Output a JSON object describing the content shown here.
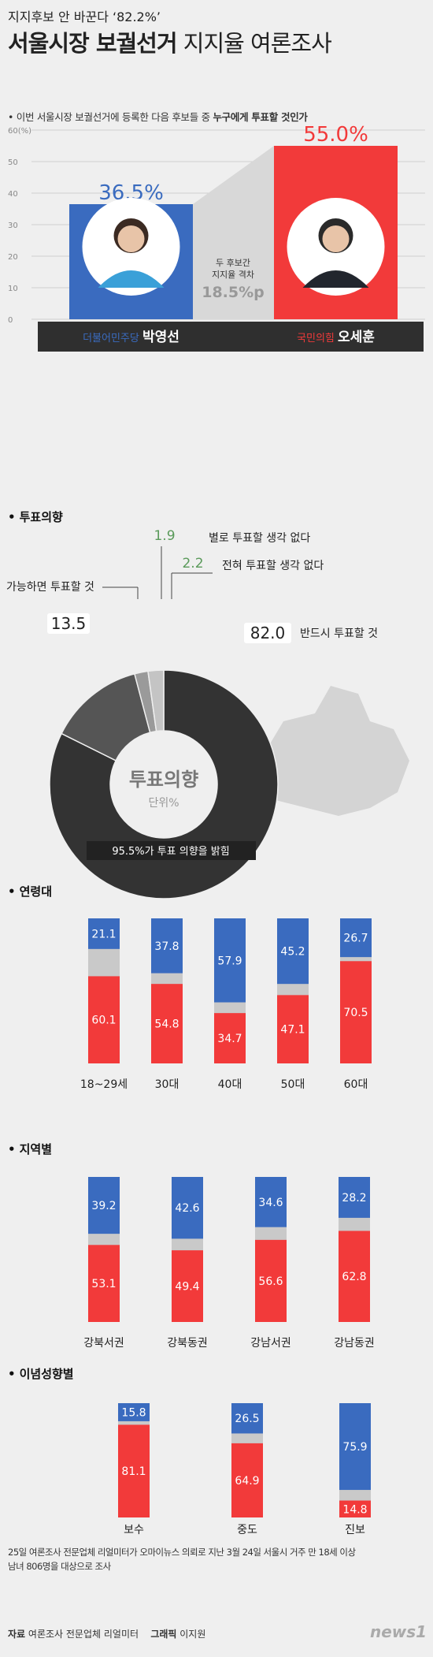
{
  "header": {
    "kicker": "지지후보 안 바꾼다 ‘82.2%’",
    "title_bold": "서울시장 보궐선거",
    "title_regular": "지지율 여론조사",
    "question_prefix": "이번 서울시장 보궐선거에 등록한 다음 후보들 중",
    "question_bold": "누구에게 투표할 것인가"
  },
  "colors": {
    "blue": "#3a6bbf",
    "red": "#f23a3a",
    "gray": "#c9c9c9",
    "dark": "#333333"
  },
  "chart_data": [
    {
      "type": "bar",
      "title": "",
      "categories": [
        "더불어민주당 박영선",
        "국민의힘 오세훈"
      ],
      "series": [
        {
          "values": [
            36.5,
            55.0
          ]
        }
      ],
      "ylim": [
        0,
        60
      ],
      "yticks": [
        "0",
        "10",
        "20",
        "30",
        "40",
        "50",
        "60(%)"
      ],
      "value_labels": [
        "36.5%",
        "55.0%"
      ],
      "candidates": [
        {
          "party": "더불어민주당",
          "name": "박영선",
          "color": "#3a6bbf"
        },
        {
          "party": "국민의힘",
          "name": "오세훈",
          "color": "#f23a3a"
        }
      ],
      "gap_label_1": "두 후보간",
      "gap_label_2": "지지율 격차",
      "gap_value": "18.5%p"
    },
    {
      "type": "pie",
      "section_title": "투표의향",
      "center_title": "투표의향",
      "center_unit": "단위%",
      "slices": [
        {
          "label": "반드시 투표할 것",
          "value": 82.0,
          "display": "82.0"
        },
        {
          "label": "가능하면 투표할 것",
          "value": 13.5,
          "display": "13.5"
        },
        {
          "label": "별로 투표할 생각 없다",
          "value": 1.9,
          "display": "1.9"
        },
        {
          "label": "전혀 투표할 생각 없다",
          "value": 2.2,
          "display": "2.2"
        }
      ],
      "footnote": "95.5%가 투표 의향을 밝힘"
    },
    {
      "type": "bar",
      "stacked": true,
      "section_title": "연령대",
      "categories": [
        "18~29세",
        "30대",
        "40대",
        "50대",
        "60대"
      ],
      "series": [
        {
          "values": [
            21.1,
            37.8,
            57.9,
            45.2,
            26.7
          ]
        },
        {
          "values": [
            60.1,
            54.8,
            34.7,
            47.1,
            70.5
          ]
        }
      ]
    },
    {
      "type": "bar",
      "stacked": true,
      "section_title": "지역별",
      "categories": [
        "강북서권",
        "강북동권",
        "강남서권",
        "강남동권"
      ],
      "series": [
        {
          "values": [
            39.2,
            42.6,
            34.6,
            28.2
          ]
        },
        {
          "values": [
            53.1,
            49.4,
            56.6,
            62.8
          ]
        }
      ]
    },
    {
      "type": "bar",
      "stacked": true,
      "section_title": "이념성향별",
      "categories": [
        "보수",
        "중도",
        "진보"
      ],
      "series": [
        {
          "values": [
            15.8,
            26.5,
            75.9
          ]
        },
        {
          "values": [
            81.1,
            64.9,
            14.8
          ]
        }
      ]
    }
  ],
  "footer": {
    "note_line1": "25일 여론조사 전문업체 리얼미터가 오마이뉴스 의뢰로 지난 3월 24일 서울시 거주 만 18세 이상",
    "note_line2": "남녀 806명을 대상으로 조사",
    "source_label": "자료",
    "source_value": "여론조사 전문업체 리얼미터",
    "graphic_label": "그래픽",
    "graphic_value": "이지원",
    "logo": "news1"
  }
}
